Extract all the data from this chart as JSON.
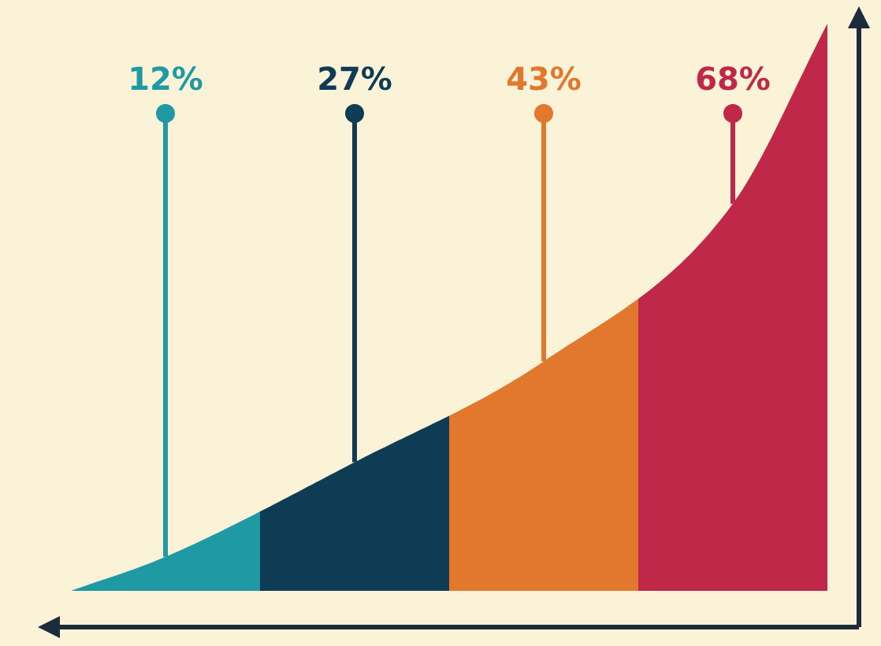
{
  "chart_data": {
    "type": "other",
    "categories": [
      null,
      null,
      null,
      null
    ],
    "values": [
      12,
      27,
      43,
      68
    ],
    "colors": [
      "#1f9aa5",
      "#0f3c55",
      "#e2772e",
      "#c0284a"
    ],
    "value_labels": [
      "12%",
      "27%",
      "43%",
      "68%"
    ]
  }
}
